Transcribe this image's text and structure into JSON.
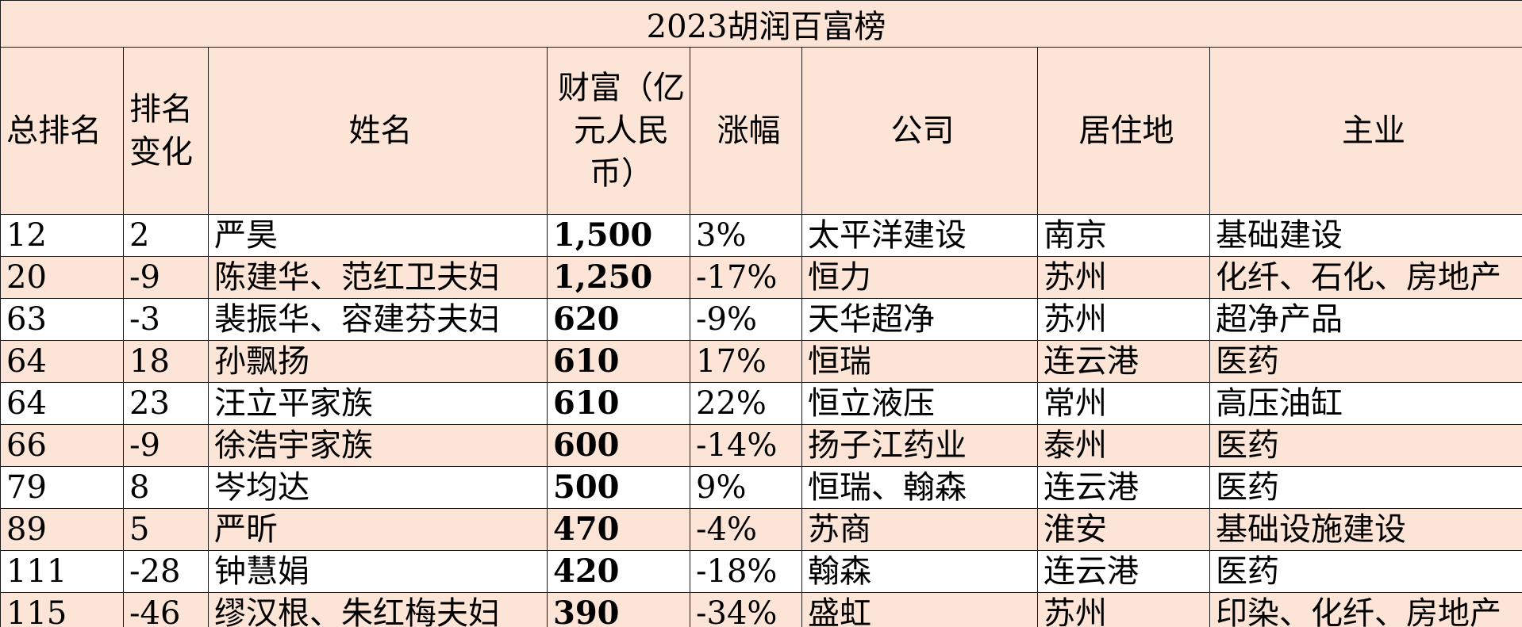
{
  "title": "2023胡润百富榜",
  "headers": {
    "rank": "总排名",
    "rank_change": "排名变化",
    "name": "姓名",
    "wealth": "财富（亿元人民币）",
    "change_pct": "涨幅",
    "company": "公司",
    "residence": "居住地",
    "industry": "主业"
  },
  "rows": [
    {
      "rank": "12",
      "rank_change": "2",
      "name": "严昊",
      "wealth": "1,500",
      "change_pct": "3%",
      "company": "太平洋建设",
      "residence": "南京",
      "industry": "基础建设"
    },
    {
      "rank": "20",
      "rank_change": "-9",
      "name": "陈建华、范红卫夫妇",
      "wealth": "1,250",
      "change_pct": "-17%",
      "company": "恒力",
      "residence": "苏州",
      "industry": "化纤、石化、房地产"
    },
    {
      "rank": "63",
      "rank_change": "-3",
      "name": "裴振华、容建芬夫妇",
      "wealth": "620",
      "change_pct": "-9%",
      "company": "天华超净",
      "residence": "苏州",
      "industry": "超净产品"
    },
    {
      "rank": "64",
      "rank_change": "18",
      "name": "孙飘扬",
      "wealth": "610",
      "change_pct": "17%",
      "company": "恒瑞",
      "residence": "连云港",
      "industry": "医药"
    },
    {
      "rank": "64",
      "rank_change": "23",
      "name": "汪立平家族",
      "wealth": "610",
      "change_pct": "22%",
      "company": "恒立液压",
      "residence": "常州",
      "industry": "高压油缸"
    },
    {
      "rank": "66",
      "rank_change": "-9",
      "name": "徐浩宇家族",
      "wealth": "600",
      "change_pct": "-14%",
      "company": "扬子江药业",
      "residence": "泰州",
      "industry": "医药"
    },
    {
      "rank": "79",
      "rank_change": "8",
      "name": "岑均达",
      "wealth": "500",
      "change_pct": "9%",
      "company": "恒瑞、翰森",
      "residence": "连云港",
      "industry": "医药"
    },
    {
      "rank": "89",
      "rank_change": "5",
      "name": "严昕",
      "wealth": "470",
      "change_pct": "-4%",
      "company": "苏商",
      "residence": "淮安",
      "industry": "基础设施建设"
    },
    {
      "rank": "111",
      "rank_change": "-28",
      "name": "钟慧娟",
      "wealth": "420",
      "change_pct": "-18%",
      "company": "翰森",
      "residence": "连云港",
      "industry": "医药"
    },
    {
      "rank": "115",
      "rank_change": "-46",
      "name": "缪汉根、朱红梅夫妇",
      "wealth": "390",
      "change_pct": "-34%",
      "company": "盛虹",
      "residence": "苏州",
      "industry": "印染、化纤、房地产"
    }
  ]
}
